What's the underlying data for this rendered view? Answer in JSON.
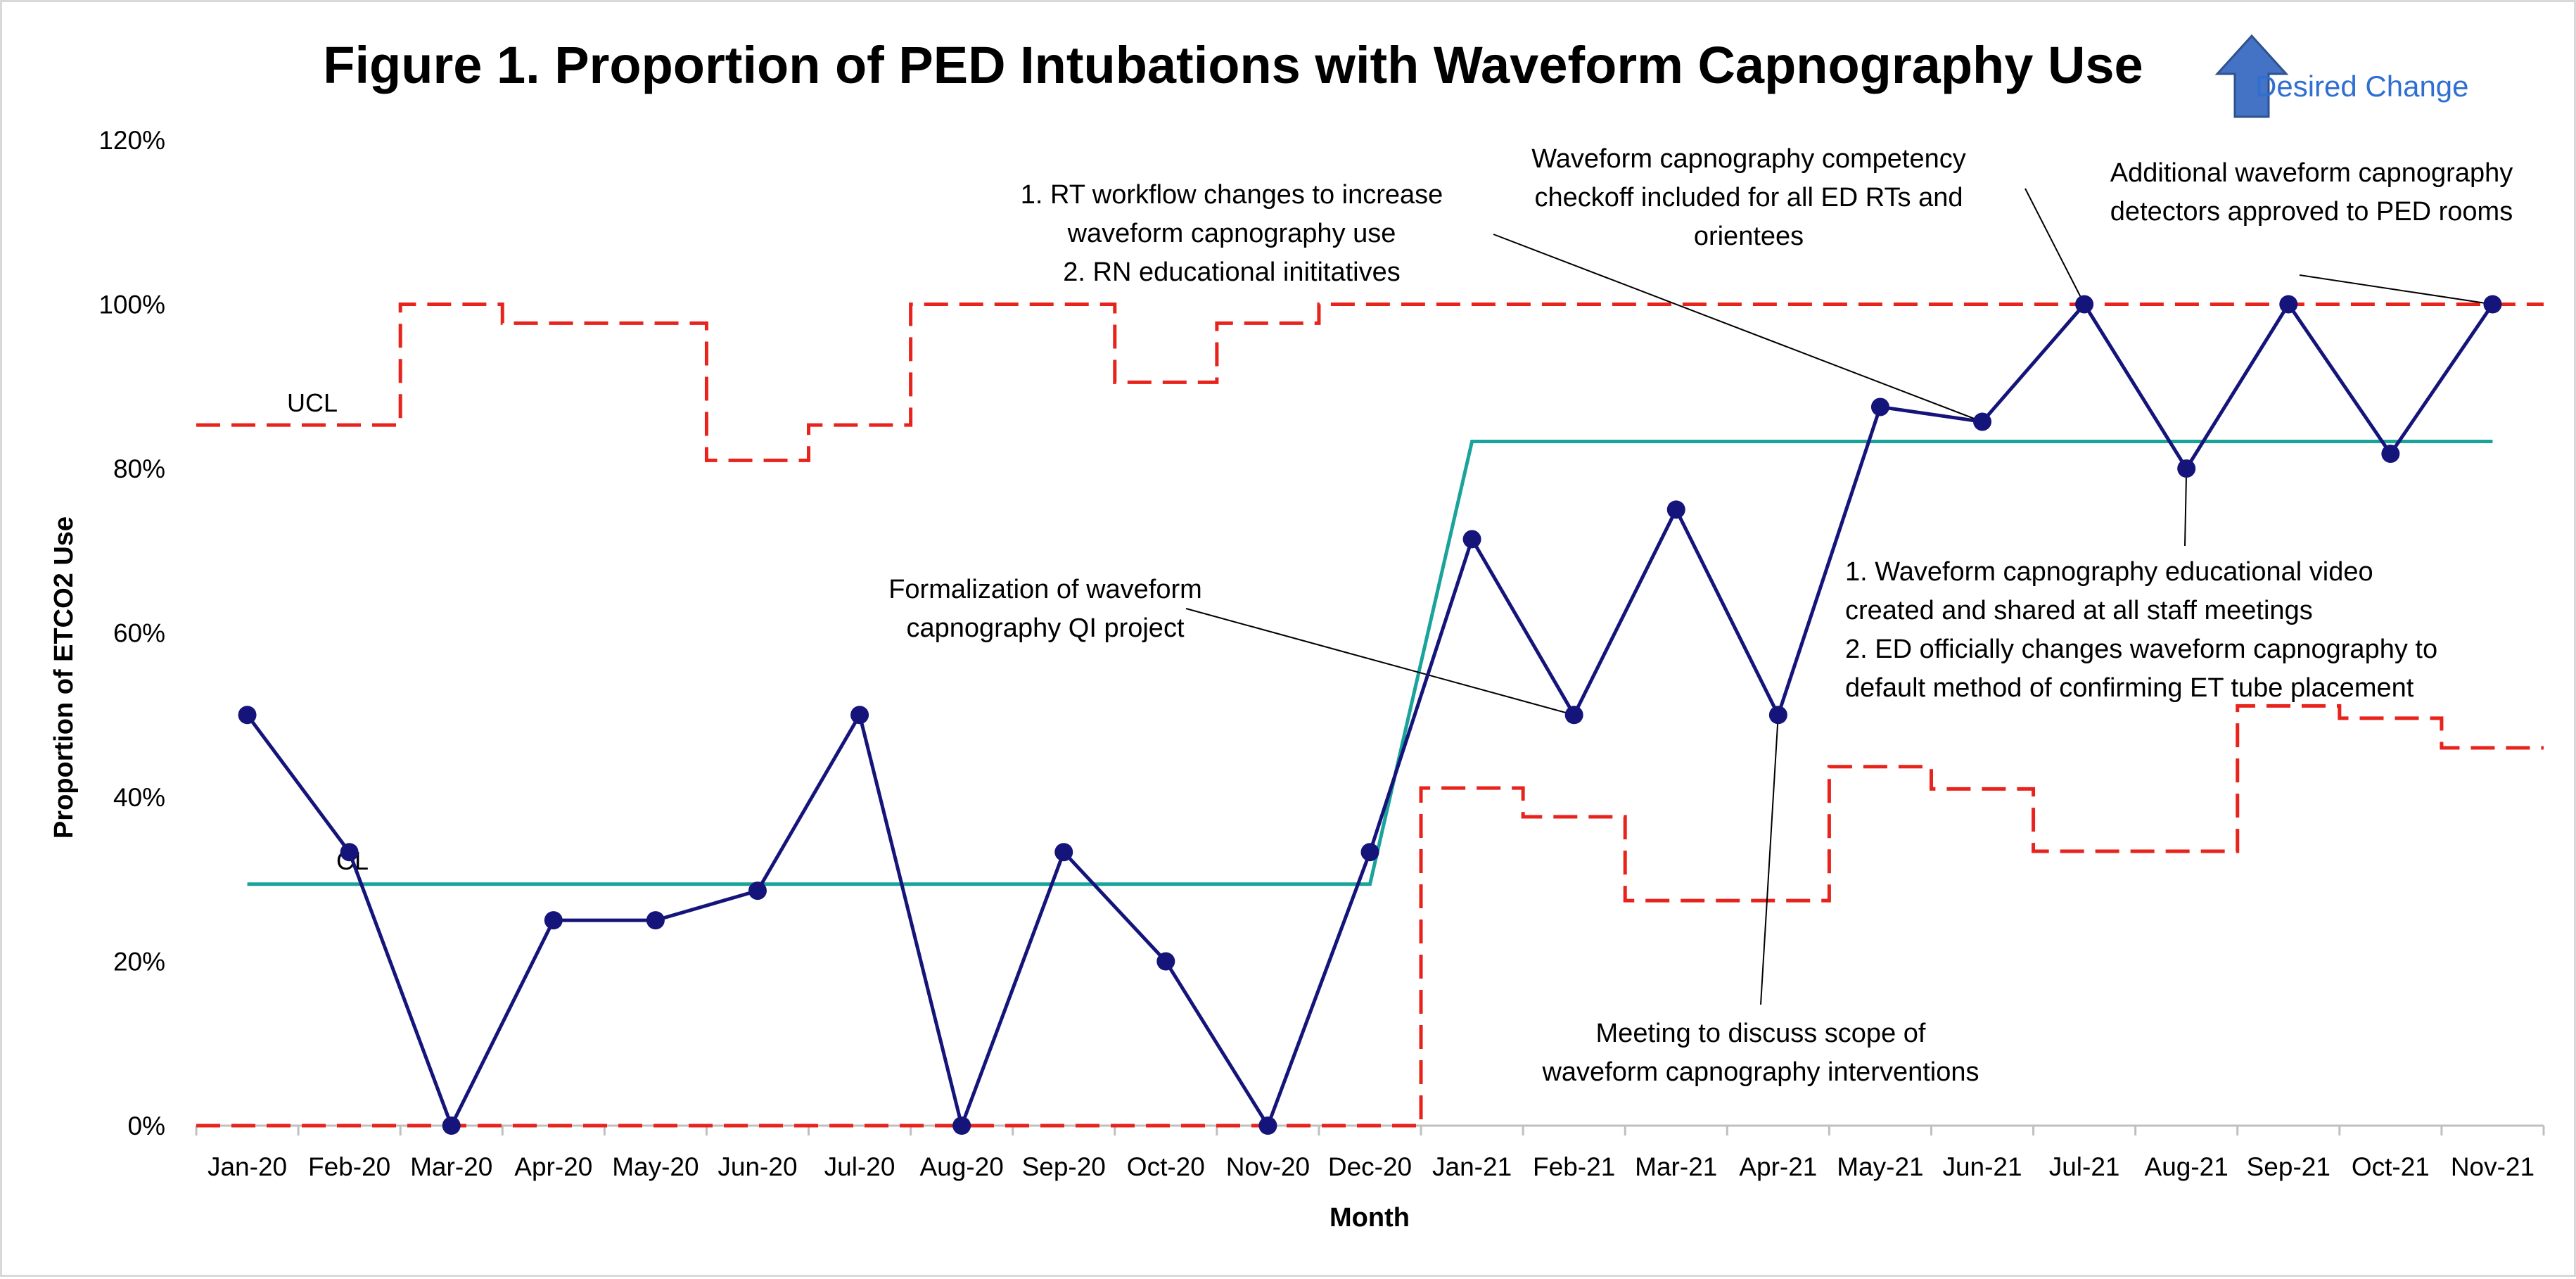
{
  "chart_data": {
    "type": "line",
    "title": "Figure 1. Proportion of PED Intubations with Waveform Capnography Use",
    "xlabel": "Month",
    "ylabel": "Proportion of ETCO2 Use",
    "ylim": [
      0,
      1.2
    ],
    "y_ticks": [
      "0%",
      "20%",
      "40%",
      "60%",
      "80%",
      "100%",
      "120%"
    ],
    "categories": [
      "Jan-20",
      "Feb-20",
      "Mar-20",
      "Apr-20",
      "May-20",
      "Jun-20",
      "Jul-20",
      "Aug-20",
      "Sep-20",
      "Oct-20",
      "Nov-20",
      "Dec-20",
      "Jan-21",
      "Feb-21",
      "Mar-21",
      "Apr-21",
      "May-21",
      "Jun-21",
      "Jul-21",
      "Aug-21",
      "Sep-21",
      "Oct-21",
      "Nov-21"
    ],
    "series": [
      {
        "values": [
          0.5,
          0.333,
          0.0,
          0.25,
          0.25,
          0.286,
          0.5,
          0.0,
          0.333,
          0.2,
          0.0,
          0.333,
          0.714,
          0.5,
          0.75,
          0.5,
          0.875,
          0.857,
          1.0,
          0.8,
          1.0,
          0.818,
          1.0
        ],
        "color": "#14147a"
      }
    ],
    "center_line": {
      "label": "CL",
      "segments": [
        {
          "from": "Jan-20",
          "to": "Dec-20",
          "value": 0.294
        },
        {
          "from": "Jan-21",
          "to": "Nov-21",
          "value": 0.833
        }
      ],
      "color": "#1aa39a"
    },
    "ucl": {
      "label": "UCL",
      "values": [
        0.853,
        0.853,
        1.0,
        0.977,
        0.977,
        0.81,
        0.853,
        1.0,
        1.0,
        0.905,
        0.977,
        1.0,
        1.0,
        1.0,
        1.0,
        1.0,
        1.0,
        1.0,
        1.0,
        1.0,
        1.0,
        1.0,
        1.0
      ],
      "color": "#e8231c"
    },
    "lcl": {
      "values": [
        0,
        0,
        0,
        0,
        0,
        0,
        0,
        0,
        0,
        0,
        0,
        0,
        0.411,
        0.376,
        0.274,
        0.274,
        0.437,
        0.41,
        0.334,
        0.334,
        0.511,
        0.496,
        0.46
      ],
      "color": "#e8231c"
    },
    "grid": false,
    "legend": "none",
    "desired_change": {
      "text": "Desired Change",
      "direction": "up",
      "color": "#2f6fd1"
    },
    "annotations": [
      {
        "lines": [
          "Formalization of waveform",
          "capnography QI project"
        ],
        "target": "Feb-21"
      },
      {
        "lines": [
          "1. RT workflow changes to increase",
          "waveform capnography use",
          "2. RN educational inititatives"
        ],
        "target": "Jun-21"
      },
      {
        "lines": [
          "Waveform capnography competency",
          "checkoff included for all ED RTs and",
          "orientees"
        ],
        "target": "Jul-21"
      },
      {
        "lines": [
          "Additional waveform capnography",
          "detectors approved to PED rooms"
        ],
        "target": "Nov-21"
      },
      {
        "lines": [
          "1. Waveform capnography educational video",
          "created and shared at all staff meetings",
          "2. ED officially  changes waveform capnography to",
          "default method of confirming ET tube placement"
        ],
        "target": "Aug-21"
      },
      {
        "lines": [
          "Meeting to discuss scope of",
          "waveform capnography interventions"
        ],
        "target": "Apr-21"
      }
    ]
  }
}
